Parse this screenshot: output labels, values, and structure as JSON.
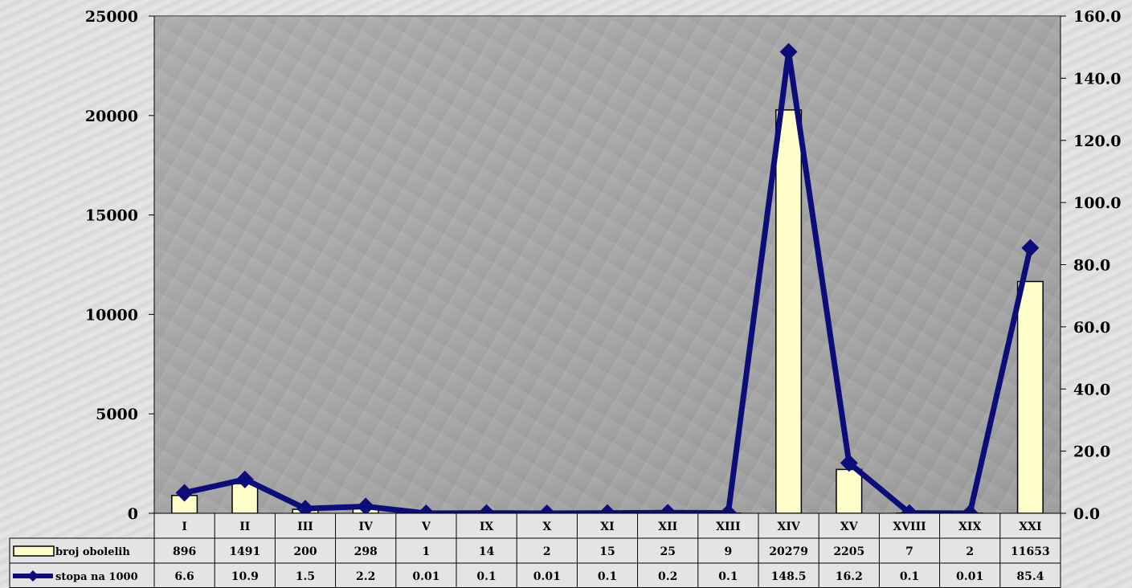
{
  "chart_data": {
    "type": "bar+line",
    "categories": [
      "I",
      "II",
      "III",
      "IV",
      "V",
      "IX",
      "X",
      "XI",
      "XII",
      "XIII",
      "XIV",
      "XV",
      "XVIII",
      "XIX",
      "XXI"
    ],
    "series": [
      {
        "name": "broj obolelih",
        "type": "bar",
        "axis": "left",
        "color": "#ffffcc",
        "values": [
          896,
          1491,
          200,
          298,
          1,
          14,
          2,
          15,
          25,
          9,
          20279,
          2205,
          7,
          2,
          11653
        ],
        "labels": [
          "896",
          "1491",
          "200",
          "298",
          "1",
          "14",
          "2",
          "15",
          "25",
          "9",
          "20279",
          "2205",
          "7",
          "2",
          "11653"
        ]
      },
      {
        "name": "stopa na 1000",
        "type": "line",
        "axis": "right",
        "color": "#0d0d7a",
        "marker": "diamond",
        "values": [
          6.6,
          10.9,
          1.5,
          2.2,
          0.01,
          0.1,
          0.01,
          0.1,
          0.2,
          0.1,
          148.5,
          16.2,
          0.1,
          0.01,
          85.4
        ],
        "labels": [
          "6.6",
          "10.9",
          "1.5",
          "2.2",
          "0.01",
          "0.1",
          "0.01",
          "0.1",
          "0.2",
          "0.1",
          "148.5",
          "16.2",
          "0.1",
          "0.01",
          "85.4"
        ]
      }
    ],
    "y_left": {
      "min": 0,
      "max": 25000,
      "ticks": [
        0,
        5000,
        10000,
        15000,
        20000,
        25000
      ],
      "tick_labels": [
        "0",
        "5000",
        "10000",
        "15000",
        "20000",
        "25000"
      ]
    },
    "y_right": {
      "min": 0,
      "max": 160,
      "ticks": [
        0,
        20,
        40,
        60,
        80,
        100,
        120,
        140,
        160
      ],
      "tick_labels": [
        "0.0",
        "20.0",
        "40.0",
        "60.0",
        "80.0",
        "100.0",
        "120.0",
        "140.0",
        "160.0"
      ]
    },
    "data_table": true,
    "plot_background": "#a6a6a6"
  }
}
